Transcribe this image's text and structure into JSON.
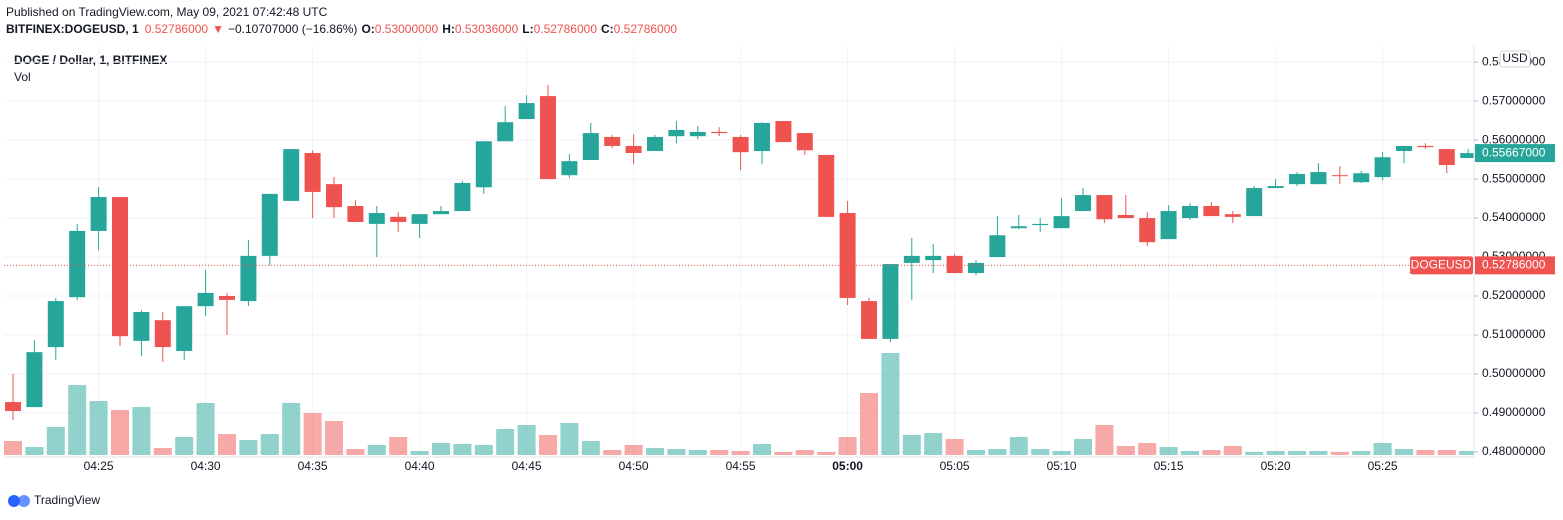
{
  "header": {
    "published": "Published on TradingView.com, May 09, 2021 07:42:48 UTC",
    "symbol": "BITFINEX:DOGEUSD, 1",
    "last": "0.52786000",
    "arrow": "▼",
    "change": "−0.10707000 (−16.86%)",
    "ohlc": [
      {
        "key": "O:",
        "value": "0.53000000"
      },
      {
        "key": "H:",
        "value": "0.53036000"
      },
      {
        "key": "L:",
        "value": "0.52786000"
      },
      {
        "key": "C:",
        "value": "0.52786000"
      }
    ]
  },
  "chart_data": {
    "type": "candlestick",
    "title": "DOGE / Dollar, 1, BITFINEX",
    "volume_label": "Vol",
    "currency": "USD",
    "up_color": "#26a69a",
    "down_color": "#ef5350",
    "volume_up_color": "rgba(38,166,154,0.5)",
    "volume_down_color": "rgba(239,83,80,0.5)",
    "categories": [
      null,
      null,
      null,
      null,
      "04:25",
      null,
      null,
      null,
      null,
      "04:30",
      null,
      null,
      null,
      null,
      "04:35",
      null,
      null,
      null,
      null,
      "04:40",
      null,
      null,
      null,
      null,
      "04:45",
      null,
      null,
      null,
      null,
      "04:50",
      null,
      null,
      null,
      null,
      "04:55",
      null,
      null,
      null,
      null,
      "05:00",
      null,
      null,
      null,
      null,
      "05:05",
      null,
      null,
      null,
      null,
      "05:10",
      null,
      null,
      null,
      null,
      "05:15",
      null,
      null,
      null,
      null,
      "05:20",
      null,
      null,
      null,
      null,
      "05:25",
      null,
      null,
      null,
      null
    ],
    "open": [
      0.4928,
      0.4915,
      0.5069,
      0.5197,
      0.5367,
      0.5454,
      0.5085,
      0.5138,
      0.5059,
      0.5174,
      0.52,
      0.5187,
      0.5303,
      0.5444,
      0.5567,
      0.5487,
      0.5431,
      0.5385,
      0.5403,
      0.5385,
      0.541,
      0.5418,
      0.5479,
      0.5597,
      0.5654,
      0.5713,
      0.551,
      0.5549,
      0.5608,
      0.5585,
      0.5572,
      0.561,
      0.561,
      0.5621,
      0.5608,
      0.5572,
      0.5649,
      0.5618,
      0.5562,
      0.5413,
      0.5187,
      0.509,
      0.5285,
      0.5292,
      0.5303,
      0.5259,
      0.53,
      0.5374,
      0.5382,
      0.5374,
      0.5418,
      0.5459,
      0.5408,
      0.54,
      0.5346,
      0.54,
      0.5431,
      0.541,
      0.5405,
      0.5477,
      0.5487,
      0.5487,
      0.551,
      0.5492,
      0.5505,
      0.5572,
      0.5585,
      0.5577,
      0.5554
    ],
    "high": [
      0.5,
      0.5087,
      0.5195,
      0.5385,
      0.5479,
      0.5454,
      0.5164,
      0.5159,
      0.5174,
      0.5267,
      0.5208,
      0.5344,
      0.5462,
      0.5577,
      0.5574,
      0.5505,
      0.5446,
      0.5431,
      0.5415,
      0.541,
      0.5431,
      0.5495,
      0.5597,
      0.5687,
      0.5715,
      0.5741,
      0.5564,
      0.5644,
      0.5613,
      0.5615,
      0.5613,
      0.5649,
      0.5636,
      0.5633,
      0.5613,
      0.5646,
      0.5649,
      0.5618,
      0.5562,
      0.5444,
      0.5195,
      0.5282,
      0.5349,
      0.5333,
      0.5308,
      0.5292,
      0.5405,
      0.5408,
      0.54,
      0.5451,
      0.5477,
      0.5459,
      0.5459,
      0.5415,
      0.5433,
      0.5438,
      0.5441,
      0.5418,
      0.5482,
      0.55,
      0.5518,
      0.5541,
      0.5533,
      0.5521,
      0.5569,
      0.5585,
      0.5592,
      0.5577,
      0.5577
    ],
    "low": [
      0.4882,
      0.4915,
      0.5036,
      0.519,
      0.5318,
      0.5072,
      0.5046,
      0.5031,
      0.5036,
      0.5149,
      0.51,
      0.5174,
      0.5279,
      0.5444,
      0.54,
      0.54,
      0.539,
      0.53,
      0.5364,
      0.5349,
      0.541,
      0.5418,
      0.5462,
      0.5597,
      0.5654,
      0.55,
      0.5503,
      0.5549,
      0.5579,
      0.5538,
      0.5572,
      0.5592,
      0.5603,
      0.561,
      0.5523,
      0.5538,
      0.5595,
      0.5562,
      0.5403,
      0.5177,
      0.509,
      0.5082,
      0.519,
      0.5259,
      0.5259,
      0.5254,
      0.53,
      0.5372,
      0.5364,
      0.5374,
      0.5418,
      0.5387,
      0.54,
      0.5328,
      0.5346,
      0.5395,
      0.5405,
      0.5387,
      0.5405,
      0.5477,
      0.5482,
      0.5487,
      0.5487,
      0.549,
      0.5497,
      0.5541,
      0.5577,
      0.5515,
      0.5554
    ],
    "close": [
      0.4905,
      0.5056,
      0.5187,
      0.5367,
      0.5454,
      0.5097,
      0.5159,
      0.5069,
      0.5174,
      0.5208,
      0.519,
      0.5303,
      0.5462,
      0.5577,
      0.5467,
      0.5428,
      0.539,
      0.5413,
      0.539,
      0.541,
      0.5418,
      0.549,
      0.5597,
      0.5646,
      0.5695,
      0.55,
      0.5546,
      0.5618,
      0.5585,
      0.5567,
      0.5608,
      0.5626,
      0.5621,
      0.5618,
      0.5569,
      0.5644,
      0.5595,
      0.5574,
      0.5403,
      0.5195,
      0.509,
      0.5282,
      0.5303,
      0.5303,
      0.5259,
      0.5285,
      0.5356,
      0.5379,
      0.5385,
      0.5405,
      0.5459,
      0.5397,
      0.54,
      0.5338,
      0.5418,
      0.5431,
      0.5405,
      0.5403,
      0.5477,
      0.5482,
      0.5513,
      0.5518,
      0.5508,
      0.5515,
      0.5556,
      0.5585,
      0.5582,
      0.5536,
      0.55667
    ],
    "volume": [
      14,
      8,
      28,
      70,
      54,
      45,
      48,
      7,
      18,
      52,
      21,
      15,
      21,
      52,
      42,
      34,
      6,
      10,
      18,
      4,
      12,
      11,
      10,
      26,
      30,
      20,
      32,
      14,
      5,
      10,
      7,
      6,
      5,
      5,
      4,
      11,
      3,
      5,
      3,
      18,
      62,
      102,
      20,
      22,
      16,
      5,
      6,
      18,
      6,
      4,
      16,
      30,
      9,
      12,
      8,
      4,
      5,
      9,
      3,
      4,
      4,
      4,
      3,
      4,
      12,
      6,
      5,
      5,
      4
    ],
    "ylim": [
      0.4787,
      0.5844
    ],
    "yticks": [
      {
        "value": 0.48,
        "label": "0.48000000"
      },
      {
        "value": 0.49,
        "label": "0.49000000"
      },
      {
        "value": 0.5,
        "label": "0.50000000"
      },
      {
        "value": 0.51,
        "label": "0.51000000"
      },
      {
        "value": 0.52,
        "label": "0.52000000"
      },
      {
        "value": 0.53,
        "label": "0.53000000"
      },
      {
        "value": 0.54,
        "label": "0.54000000"
      },
      {
        "value": 0.55,
        "label": "0.55000000"
      },
      {
        "value": 0.56,
        "label": "0.56000000"
      },
      {
        "value": 0.57,
        "label": "0.57000000"
      },
      {
        "value": 0.58,
        "label": "0.58000000"
      }
    ],
    "grid": true,
    "last_price": {
      "value": 0.55667,
      "label": "0.55667000",
      "color": "#26a69a"
    },
    "price_line": {
      "name": "DOGEUSD",
      "value": 0.52786,
      "label": "0.52786000",
      "color": "#ef5350"
    }
  },
  "footer": {
    "brand": "TradingView"
  }
}
